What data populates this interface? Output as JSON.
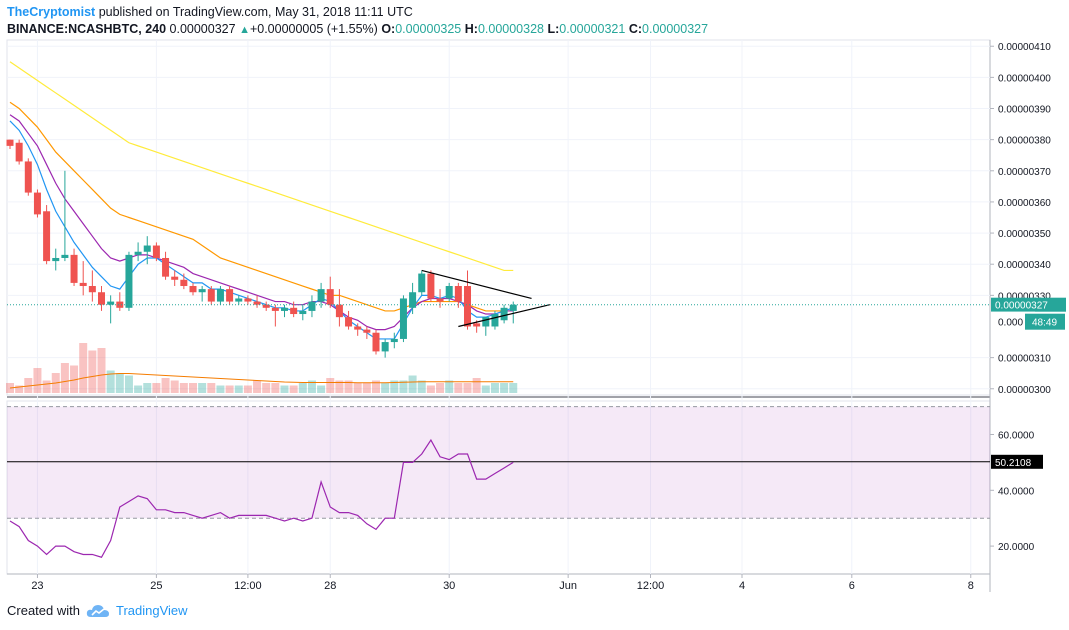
{
  "header": {
    "author": "TheCryptomist",
    "published_text": "published on TradingView.com, May 31, 2018 11:11 UTC"
  },
  "ohlc": {
    "symbol": "BINANCE:NCASHBTC, 240",
    "last": "0.00000327",
    "change_arrow": "▲",
    "change": "+0.00000005 (+1.55%)",
    "o_label": "O:",
    "o": "0.00000325",
    "h_label": "H:",
    "h": "0.00000328",
    "l_label": "L:",
    "l": "0.00000321",
    "c_label": "C:",
    "c": "0.00000327"
  },
  "footer": {
    "created_with": "Created with",
    "brand": "TradingView"
  },
  "colors": {
    "up": "#26a69a",
    "down": "#ef5350",
    "accent": "#2196f3",
    "rsi": "#9c27b0"
  },
  "chart_data": [
    {
      "type": "candlestick",
      "price_axis_ticks": [
        "0.00000410",
        "0.00000400",
        "0.00000390",
        "0.00000380",
        "0.00000370",
        "0.00000360",
        "0.00000350",
        "0.00000340",
        "0.00000330",
        "0.00000310",
        "0.00000300"
      ],
      "ylim": [
        2.98e-06,
        4.12e-06
      ],
      "last_price_label": "0.00000327",
      "countdown_label": "48:49",
      "partial_label": "0.000",
      "x_tick_labels": [
        "23",
        "25",
        "12:00",
        "28",
        "30",
        "Jun",
        "12:00",
        "4",
        "6",
        "8"
      ],
      "x_ticks_index": [
        3,
        16,
        26,
        35,
        48,
        61,
        70,
        80,
        92,
        105
      ],
      "candles": [
        [
          3.8e-06,
          3.8e-06,
          3.77e-06,
          3.78e-06
        ],
        [
          3.79e-06,
          3.8e-06,
          3.72e-06,
          3.73e-06
        ],
        [
          3.73e-06,
          3.74e-06,
          3.62e-06,
          3.63e-06
        ],
        [
          3.63e-06,
          3.64e-06,
          3.55e-06,
          3.56e-06
        ],
        [
          3.57e-06,
          3.59e-06,
          3.4e-06,
          3.41e-06
        ],
        [
          3.41e-06,
          3.45e-06,
          3.38e-06,
          3.42e-06
        ],
        [
          3.42e-06,
          3.7e-06,
          3.41e-06,
          3.43e-06
        ],
        [
          3.43e-06,
          3.45e-06,
          3.33e-06,
          3.34e-06
        ],
        [
          3.34e-06,
          3.41e-06,
          3.3e-06,
          3.33e-06
        ],
        [
          3.33e-06,
          3.38e-06,
          3.28e-06,
          3.31e-06
        ],
        [
          3.31e-06,
          3.33e-06,
          3.25e-06,
          3.27e-06
        ],
        [
          3.27e-06,
          3.3e-06,
          3.21e-06,
          3.28e-06
        ],
        [
          3.28e-06,
          3.31e-06,
          3.25e-06,
          3.26e-06
        ],
        [
          3.26e-06,
          3.44e-06,
          3.25e-06,
          3.43e-06
        ],
        [
          3.43e-06,
          3.47e-06,
          3.41e-06,
          3.44e-06
        ],
        [
          3.44e-06,
          3.49e-06,
          3.4e-06,
          3.46e-06
        ],
        [
          3.46e-06,
          3.47e-06,
          3.41e-06,
          3.42e-06
        ],
        [
          3.42e-06,
          3.44e-06,
          3.35e-06,
          3.36e-06
        ],
        [
          3.36e-06,
          3.38e-06,
          3.33e-06,
          3.35e-06
        ],
        [
          3.35e-06,
          3.37e-06,
          3.32e-06,
          3.33e-06
        ],
        [
          3.33e-06,
          3.34e-06,
          3.3e-06,
          3.31e-06
        ],
        [
          3.31e-06,
          3.33e-06,
          3.28e-06,
          3.32e-06
        ],
        [
          3.32e-06,
          3.33e-06,
          3.27e-06,
          3.28e-06
        ],
        [
          3.28e-06,
          3.33e-06,
          3.27e-06,
          3.32e-06
        ],
        [
          3.32e-06,
          3.33e-06,
          3.27e-06,
          3.28e-06
        ],
        [
          3.28e-06,
          3.3e-06,
          3.27e-06,
          3.29e-06
        ],
        [
          3.29e-06,
          3.3e-06,
          3.27e-06,
          3.28e-06
        ],
        [
          3.28e-06,
          3.3e-06,
          3.26e-06,
          3.27e-06
        ],
        [
          3.27e-06,
          3.28e-06,
          3.25e-06,
          3.26e-06
        ],
        [
          3.26e-06,
          3.27e-06,
          3.2e-06,
          3.25e-06
        ],
        [
          3.25e-06,
          3.27e-06,
          3.23e-06,
          3.26e-06
        ],
        [
          3.26e-06,
          3.28e-06,
          3.23e-06,
          3.24e-06
        ],
        [
          3.24e-06,
          3.27e-06,
          3.22e-06,
          3.25e-06
        ],
        [
          3.25e-06,
          3.3e-06,
          3.23e-06,
          3.28e-06
        ],
        [
          3.28e-06,
          3.34e-06,
          3.26e-06,
          3.32e-06
        ],
        [
          3.32e-06,
          3.36e-06,
          3.26e-06,
          3.27e-06
        ],
        [
          3.27e-06,
          3.32e-06,
          3.2e-06,
          3.23e-06
        ],
        [
          3.23e-06,
          3.25e-06,
          3.19e-06,
          3.2e-06
        ],
        [
          3.2e-06,
          3.21e-06,
          3.17e-06,
          3.19e-06
        ],
        [
          3.19e-06,
          3.2e-06,
          3.16e-06,
          3.18e-06
        ],
        [
          3.18e-06,
          3.19e-06,
          3.11e-06,
          3.12e-06
        ],
        [
          3.12e-06,
          3.16e-06,
          3.1e-06,
          3.15e-06
        ],
        [
          3.15e-06,
          3.18e-06,
          3.13e-06,
          3.16e-06
        ],
        [
          3.16e-06,
          3.3e-06,
          3.15e-06,
          3.29e-06
        ],
        [
          3.26e-06,
          3.34e-06,
          3.24e-06,
          3.31e-06
        ],
        [
          3.31e-06,
          3.38e-06,
          3.3e-06,
          3.37e-06
        ],
        [
          3.37e-06,
          3.38e-06,
          3.28e-06,
          3.29e-06
        ],
        [
          3.29e-06,
          3.32e-06,
          3.26e-06,
          3.28e-06
        ],
        [
          3.29e-06,
          3.34e-06,
          3.28e-06,
          3.33e-06
        ],
        [
          3.33e-06,
          3.34e-06,
          3.26e-06,
          3.28e-06
        ],
        [
          3.33e-06,
          3.38e-06,
          3.19e-06,
          3.2e-06
        ],
        [
          3.21e-06,
          3.22e-06,
          3.18e-06,
          3.2e-06
        ],
        [
          3.2e-06,
          3.23e-06,
          3.17e-06,
          3.23e-06
        ],
        [
          3.2e-06,
          3.25e-06,
          3.19e-06,
          3.24e-06
        ],
        [
          3.22e-06,
          3.27e-06,
          3.21e-06,
          3.26e-06
        ],
        [
          3.25e-06,
          3.28e-06,
          3.21e-06,
          3.27e-06
        ]
      ],
      "volume": [
        4,
        3,
        6,
        10,
        5,
        8,
        12,
        11,
        20,
        17,
        18,
        9,
        8,
        7,
        3,
        4,
        4,
        6,
        5,
        4,
        4,
        4,
        4,
        3,
        3,
        3,
        3,
        5,
        4,
        4,
        3,
        3,
        4,
        5,
        3,
        6,
        5,
        5,
        4,
        4,
        5,
        4,
        5,
        5,
        7,
        5,
        3,
        4,
        5,
        4,
        4,
        6,
        3,
        4,
        4,
        4
      ],
      "volume_up": [
        false,
        false,
        false,
        false,
        false,
        false,
        false,
        false,
        false,
        false,
        false,
        true,
        true,
        true,
        true,
        true,
        false,
        false,
        false,
        false,
        false,
        true,
        false,
        true,
        false,
        true,
        false,
        false,
        false,
        false,
        true,
        false,
        true,
        true,
        true,
        false,
        false,
        false,
        false,
        false,
        false,
        true,
        true,
        true,
        true,
        true,
        false,
        false,
        true,
        false,
        false,
        false,
        true,
        true,
        true,
        true
      ],
      "ema_yellow": [
        4.05e-06,
        4.03e-06,
        4.01e-06,
        3.99e-06,
        3.97e-06,
        3.95e-06,
        3.93e-06,
        3.91e-06,
        3.89e-06,
        3.87e-06,
        3.85e-06,
        3.83e-06,
        3.81e-06,
        3.79e-06,
        3.78e-06,
        3.77e-06,
        3.76e-06,
        3.75e-06,
        3.74e-06,
        3.73e-06,
        3.72e-06,
        3.71e-06,
        3.7e-06,
        3.69e-06,
        3.68e-06,
        3.67e-06,
        3.66e-06,
        3.65e-06,
        3.64e-06,
        3.63e-06,
        3.62e-06,
        3.61e-06,
        3.6e-06,
        3.59e-06,
        3.58e-06,
        3.57e-06,
        3.56e-06,
        3.55e-06,
        3.54e-06,
        3.53e-06,
        3.52e-06,
        3.51e-06,
        3.5e-06,
        3.49e-06,
        3.48e-06,
        3.47e-06,
        3.46e-06,
        3.45e-06,
        3.44e-06,
        3.43e-06,
        3.42e-06,
        3.41e-06,
        3.4e-06,
        3.39e-06,
        3.38e-06,
        3.38e-06
      ],
      "ema_orange": [
        3.92e-06,
        3.9e-06,
        3.87e-06,
        3.84e-06,
        3.8e-06,
        3.76e-06,
        3.73e-06,
        3.7e-06,
        3.67e-06,
        3.64e-06,
        3.61e-06,
        3.58e-06,
        3.56e-06,
        3.55e-06,
        3.54e-06,
        3.53e-06,
        3.52e-06,
        3.51e-06,
        3.5e-06,
        3.49e-06,
        3.48e-06,
        3.46e-06,
        3.44e-06,
        3.42e-06,
        3.41e-06,
        3.4e-06,
        3.39e-06,
        3.38e-06,
        3.37e-06,
        3.36e-06,
        3.35e-06,
        3.34e-06,
        3.33e-06,
        3.32e-06,
        3.31e-06,
        3.3e-06,
        3.3e-06,
        3.29e-06,
        3.28e-06,
        3.27e-06,
        3.26e-06,
        3.25e-06,
        3.25e-06,
        3.26e-06,
        3.27e-06,
        3.28e-06,
        3.28e-06,
        3.28e-06,
        3.28e-06,
        3.28e-06,
        3.27e-06,
        3.26e-06,
        3.25e-06,
        3.25e-06,
        3.25e-06,
        3.25e-06
      ],
      "ema_purple": [
        3.88e-06,
        3.86e-06,
        3.82e-06,
        3.78e-06,
        3.72e-06,
        3.66e-06,
        3.61e-06,
        3.57e-06,
        3.53e-06,
        3.49e-06,
        3.45e-06,
        3.42e-06,
        3.41e-06,
        3.42e-06,
        3.43e-06,
        3.43e-06,
        3.42e-06,
        3.41e-06,
        3.4e-06,
        3.39e-06,
        3.37e-06,
        3.36e-06,
        3.35e-06,
        3.34e-06,
        3.33e-06,
        3.32e-06,
        3.31e-06,
        3.3e-06,
        3.29e-06,
        3.28e-06,
        3.28e-06,
        3.27e-06,
        3.27e-06,
        3.28e-06,
        3.28e-06,
        3.27e-06,
        3.25e-06,
        3.23e-06,
        3.22e-06,
        3.2e-06,
        3.19e-06,
        3.19e-06,
        3.2e-06,
        3.23e-06,
        3.26e-06,
        3.28e-06,
        3.29e-06,
        3.29e-06,
        3.29e-06,
        3.28e-06,
        3.27e-06,
        3.25e-06,
        3.24e-06,
        3.24e-06,
        3.25e-06,
        3.25e-06
      ],
      "ema_blue": [
        3.86e-06,
        3.83e-06,
        3.78e-06,
        3.72e-06,
        3.64e-06,
        3.57e-06,
        3.52e-06,
        3.47e-06,
        3.43e-06,
        3.39e-06,
        3.36e-06,
        3.33e-06,
        3.32e-06,
        3.36e-06,
        3.4e-06,
        3.42e-06,
        3.42e-06,
        3.4e-06,
        3.38e-06,
        3.36e-06,
        3.34e-06,
        3.34e-06,
        3.32e-06,
        3.32e-06,
        3.31e-06,
        3.3e-06,
        3.29e-06,
        3.28e-06,
        3.27e-06,
        3.26e-06,
        3.26e-06,
        3.25e-06,
        3.25e-06,
        3.27e-06,
        3.29e-06,
        3.28e-06,
        3.25e-06,
        3.22e-06,
        3.2e-06,
        3.18e-06,
        3.16e-06,
        3.16e-06,
        3.16e-06,
        3.21e-06,
        3.26e-06,
        3.3e-06,
        3.3e-06,
        3.29e-06,
        3.3e-06,
        3.29e-06,
        3.25e-06,
        3.23e-06,
        3.23e-06,
        3.24e-06,
        3.25e-06,
        3.26e-06
      ],
      "vol_ma": [
        2,
        2.4,
        2.8,
        3.2,
        3.6,
        4,
        4.6,
        5.2,
        6,
        6.6,
        7.2,
        7.6,
        7.8,
        7.8,
        7.6,
        7.4,
        7.2,
        7,
        6.8,
        6.6,
        6.4,
        6.2,
        6,
        5.8,
        5.6,
        5.4,
        5.2,
        5,
        4.8,
        4.6,
        4.4,
        4.3,
        4.2,
        4.2,
        4.2,
        4.2,
        4.2,
        4.2,
        4.1,
        4.1,
        4.1,
        4.1,
        4.2,
        4.3,
        4.4,
        4.5,
        4.5,
        4.5,
        4.5,
        4.5,
        4.5,
        4.5,
        4.5,
        4.5,
        4.5,
        4.5
      ],
      "triangle": {
        "upper": [
          [
            45,
            3.38e-06
          ],
          [
            57,
            3.29e-06
          ]
        ],
        "lower": [
          [
            49,
            3.2e-06
          ],
          [
            59,
            3.27e-06
          ]
        ]
      }
    },
    {
      "type": "line",
      "indicator": "RSI",
      "ylim": [
        10,
        72
      ],
      "y_ticks": [
        "60.0000",
        "40.0000",
        "20.0000"
      ],
      "band": [
        30,
        70
      ],
      "midline_value": 50.2108,
      "last_label": "50.2108",
      "values": [
        29,
        27,
        22,
        20,
        17,
        20,
        20,
        18,
        17,
        17,
        16,
        22,
        34,
        36,
        38,
        37,
        33,
        33,
        32,
        32,
        31,
        30,
        31,
        32,
        30,
        31,
        31,
        31,
        31,
        30,
        29,
        30,
        29,
        30,
        43,
        34,
        32,
        32,
        31,
        28,
        26,
        30,
        30,
        50,
        50,
        53,
        58,
        52,
        51,
        53,
        53,
        44,
        44,
        46,
        48,
        50
      ]
    }
  ]
}
